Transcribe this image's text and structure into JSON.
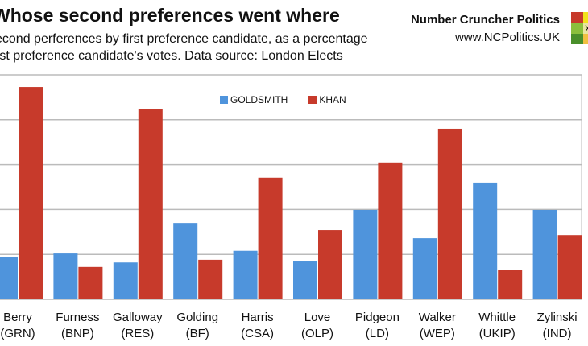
{
  "title": "Whose second preferences went where",
  "subtitle_line1": "second perferences by first preference candidate, as a percentage",
  "subtitle_line2": "first preference candidate's votes. Data source: London Elects",
  "brand": {
    "name": "Number Cruncher Politics",
    "url": "www.NCPolitics.UK"
  },
  "colors": {
    "goldsmith": "#4f94dc",
    "khan": "#c73a2b",
    "grid": "#bbbbbb"
  },
  "chart_data": {
    "type": "bar",
    "categories": [
      [
        "Berry",
        "(GRN)"
      ],
      [
        "Furness",
        "(BNP)"
      ],
      [
        "Galloway",
        "(RES)"
      ],
      [
        "Golding",
        "(BF)"
      ],
      [
        "Harris",
        "(CSA)"
      ],
      [
        "Love",
        "(OLP)"
      ],
      [
        "Pidgeon",
        "(LD)"
      ],
      [
        "Walker",
        "(WEP)"
      ],
      [
        "Whittle",
        "(UKIP)"
      ],
      [
        "Zylinski",
        "(IND)"
      ]
    ],
    "series": [
      {
        "name": "GOLDSMITH",
        "values": [
          9.5,
          10.2,
          8.2,
          17.0,
          10.8,
          8.6,
          19.9,
          13.6,
          26.0,
          19.9
        ]
      },
      {
        "name": "KHAN",
        "values": [
          47.3,
          7.2,
          42.3,
          8.8,
          27.1,
          15.4,
          30.5,
          38.0,
          6.5,
          14.3
        ]
      }
    ],
    "ylim": [
      0,
      50
    ],
    "grid": true,
    "legend": "top-center"
  }
}
